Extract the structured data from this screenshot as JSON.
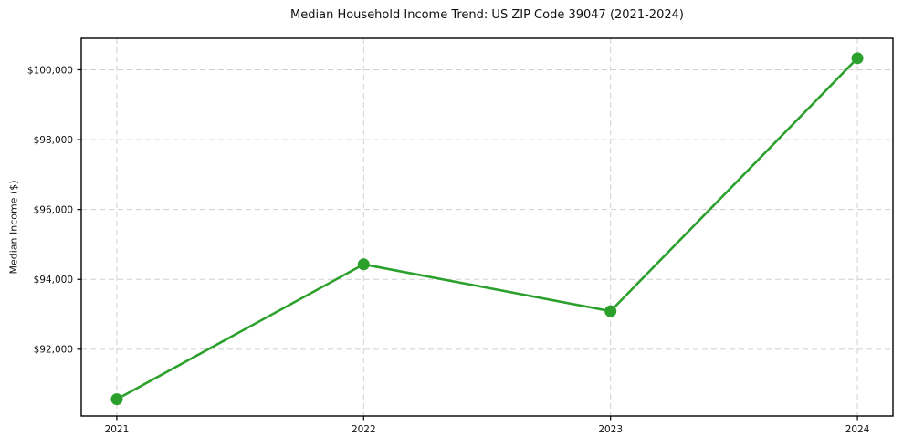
{
  "chart_data": {
    "type": "line",
    "title": "Median Household Income Trend: US ZIP Code 39047 (2021-2024)",
    "xlabel": "",
    "ylabel": "Median Income ($)",
    "x": [
      2021,
      2022,
      2023,
      2024
    ],
    "xtick_labels": [
      "2021",
      "2022",
      "2023",
      "2024"
    ],
    "series": [
      {
        "values": [
          90570,
          94430,
          93090,
          100330
        ],
        "color": "#2ca02c",
        "marker": "circle"
      }
    ],
    "yticks": [
      92000,
      94000,
      96000,
      98000,
      100000
    ],
    "ytick_labels": [
      "$92,000",
      "$94,000",
      "$96,000",
      "$98,000",
      "$100,000"
    ],
    "ylim": [
      90090,
      100900
    ],
    "xlim": [
      2020.856,
      2024.144
    ],
    "grid": true,
    "grid_style": "dashed",
    "legend": "none",
    "colors": {
      "line": "#2ca02c",
      "grid": "#cfcfcf",
      "axes": "#000000",
      "text": "#111111",
      "background": "#ffffff"
    }
  }
}
